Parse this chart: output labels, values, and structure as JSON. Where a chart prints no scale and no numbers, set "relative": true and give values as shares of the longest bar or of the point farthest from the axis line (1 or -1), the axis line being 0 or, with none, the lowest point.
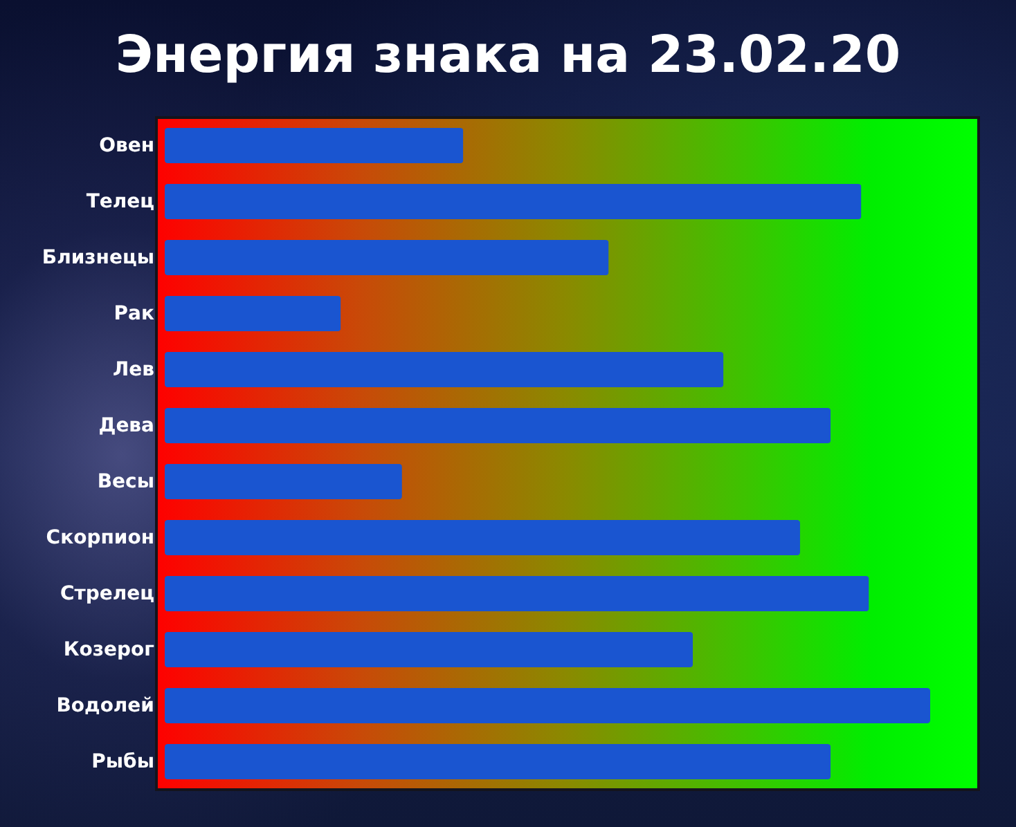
{
  "chart_data": {
    "type": "bar",
    "title": "Энергия знака на 23.02.20",
    "orientation": "horizontal",
    "relative": true,
    "categories": [
      "Овен",
      "Телец",
      "Близнецы",
      "Рак",
      "Лев",
      "Дева",
      "Весы",
      "Скорпион",
      "Стрелец",
      "Козерог",
      "Водолей",
      "Рыбы"
    ],
    "values": [
      0.39,
      0.91,
      0.58,
      0.23,
      0.73,
      0.87,
      0.31,
      0.83,
      0.92,
      0.69,
      1,
      0.87
    ],
    "color": "#1a55d0"
  }
}
